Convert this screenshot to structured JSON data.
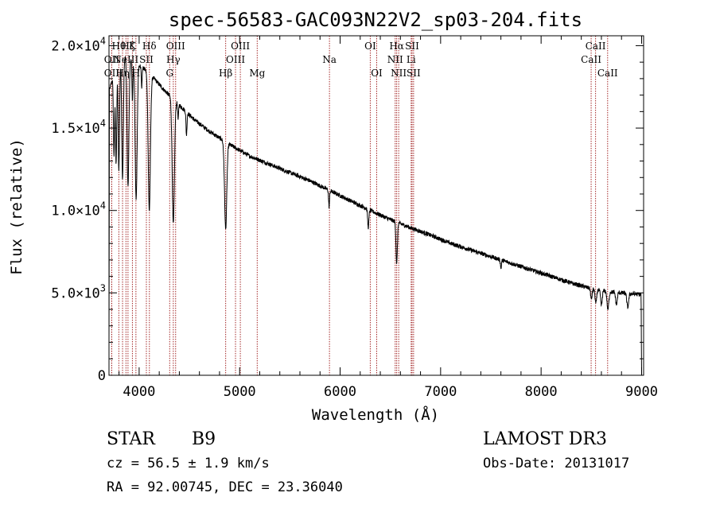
{
  "chart_data": {
    "type": "line",
    "title": "spec-56583-GAC093N22V2_sp03-204.fits",
    "xlabel": "Wavelength (Å)",
    "ylabel": "Flux (relative)",
    "xlim": [
      3700,
      9020
    ],
    "ylim": [
      0,
      20600
    ],
    "xticks": [
      {
        "value": 4000,
        "label": "4000"
      },
      {
        "value": 5000,
        "label": "5000"
      },
      {
        "value": 6000,
        "label": "6000"
      },
      {
        "value": 7000,
        "label": "7000"
      },
      {
        "value": 8000,
        "label": "8000"
      },
      {
        "value": 9000,
        "label": "9000"
      }
    ],
    "yticks": [
      {
        "value": 0,
        "mant": "0",
        "exp": ""
      },
      {
        "value": 5000,
        "mant": "5.0×10",
        "exp": "3"
      },
      {
        "value": 10000,
        "mant": "1.0×10",
        "exp": "4"
      },
      {
        "value": 15000,
        "mant": "1.5×10",
        "exp": "4"
      },
      {
        "value": 20000,
        "mant": "2.0×10",
        "exp": "4"
      }
    ],
    "continuum": [
      [
        3700,
        17200
      ],
      [
        3780,
        19000
      ],
      [
        3850,
        19400
      ],
      [
        3950,
        19000
      ],
      [
        4050,
        18600
      ],
      [
        4150,
        18000
      ],
      [
        4250,
        17300
      ],
      [
        4400,
        16400
      ],
      [
        4550,
        15500
      ],
      [
        4700,
        14800
      ],
      [
        4900,
        14000
      ],
      [
        5100,
        13300
      ],
      [
        5300,
        12800
      ],
      [
        5500,
        12300
      ],
      [
        5700,
        11800
      ],
      [
        5900,
        11200
      ],
      [
        6100,
        10600
      ],
      [
        6300,
        10000
      ],
      [
        6500,
        9450
      ],
      [
        6700,
        8950
      ],
      [
        6900,
        8500
      ],
      [
        7100,
        8000
      ],
      [
        7300,
        7600
      ],
      [
        7500,
        7200
      ],
      [
        7700,
        6800
      ],
      [
        7900,
        6400
      ],
      [
        8100,
        6000
      ],
      [
        8300,
        5600
      ],
      [
        8500,
        5250
      ],
      [
        8700,
        5050
      ],
      [
        8900,
        4950
      ],
      [
        8990,
        4900
      ]
    ],
    "absorption": [
      {
        "center": 3750,
        "depth": 5000,
        "width": 6
      },
      {
        "center": 3771,
        "depth": 6000,
        "width": 6
      },
      {
        "center": 3798,
        "depth": 6600,
        "width": 7
      },
      {
        "center": 3835,
        "depth": 7400,
        "width": 8
      },
      {
        "center": 3889,
        "depth": 7800,
        "width": 9
      },
      {
        "center": 3933,
        "depth": 2500,
        "width": 4
      },
      {
        "center": 3970,
        "depth": 8200,
        "width": 10
      },
      {
        "center": 4026,
        "depth": 1200,
        "width": 4
      },
      {
        "center": 4101,
        "depth": 8300,
        "width": 11
      },
      {
        "center": 4340,
        "depth": 7600,
        "width": 11
      },
      {
        "center": 4388,
        "depth": 1000,
        "width": 4
      },
      {
        "center": 4471,
        "depth": 1400,
        "width": 5
      },
      {
        "center": 4861,
        "depth": 5300,
        "width": 11
      },
      {
        "center": 5890,
        "depth": 1000,
        "width": 5
      },
      {
        "center": 6280,
        "depth": 1100,
        "width": 6
      },
      {
        "center": 6563,
        "depth": 2500,
        "width": 7
      },
      {
        "center": 7600,
        "depth": 500,
        "width": 5
      },
      {
        "center": 8500,
        "depth": 650,
        "width": 7
      },
      {
        "center": 8545,
        "depth": 850,
        "width": 8
      },
      {
        "center": 8600,
        "depth": 900,
        "width": 8
      },
      {
        "center": 8665,
        "depth": 1100,
        "width": 9
      },
      {
        "center": 8750,
        "depth": 750,
        "width": 8
      },
      {
        "center": 8862,
        "depth": 850,
        "width": 9
      }
    ],
    "edges": {
      "blue_drop_start": 3703,
      "red_drop_start": 8995
    },
    "line_markers": [
      {
        "wl": 3727,
        "label": "OII",
        "row": 1
      },
      {
        "wl": 3727,
        "label": "OII",
        "row": 2
      },
      {
        "wl": 3798,
        "label": "Hθ",
        "row": 0
      },
      {
        "wl": 3835,
        "label": "Hη",
        "row": 2
      },
      {
        "wl": 3869,
        "label": "NeIII",
        "row": 1
      },
      {
        "wl": 3889,
        "label": "Hζ",
        "row": 0
      },
      {
        "wl": 3933,
        "label": "K",
        "row": 0
      },
      {
        "wl": 3968,
        "label": "H",
        "row": 2
      },
      {
        "wl": 4072,
        "label": "SII",
        "row": 1
      },
      {
        "wl": 4102,
        "label": "Hδ",
        "row": 0
      },
      {
        "wl": 4304,
        "label": "G",
        "row": 2
      },
      {
        "wl": 4340,
        "label": "Hγ",
        "row": 1
      },
      {
        "wl": 4363,
        "label": "OIII",
        "row": 0
      },
      {
        "wl": 4861,
        "label": "Hβ",
        "row": 2
      },
      {
        "wl": 4959,
        "label": "OIII",
        "row": 1
      },
      {
        "wl": 5007,
        "label": "OIII",
        "row": 0
      },
      {
        "wl": 5175,
        "label": "Mg",
        "row": 2
      },
      {
        "wl": 5894,
        "label": "Na",
        "row": 1
      },
      {
        "wl": 6300,
        "label": "OI",
        "row": 0
      },
      {
        "wl": 6364,
        "label": "OI",
        "row": 2
      },
      {
        "wl": 6548,
        "label": "NII",
        "row": 1
      },
      {
        "wl": 6563,
        "label": "Hα",
        "row": 0
      },
      {
        "wl": 6583,
        "label": "NII",
        "row": 2
      },
      {
        "wl": 6707,
        "label": "Li",
        "row": 1
      },
      {
        "wl": 6716,
        "label": "SII",
        "row": 0
      },
      {
        "wl": 6731,
        "label": "SII",
        "row": 2
      },
      {
        "wl": 8498,
        "label": "CaII",
        "row": 1
      },
      {
        "wl": 8542,
        "label": "CaII",
        "row": 0
      },
      {
        "wl": 8662,
        "label": "CaII",
        "row": 2
      }
    ],
    "marker_color": "#a52a2a"
  },
  "info": {
    "object_class": "STAR",
    "subclass": "B9",
    "survey": "LAMOST DR3",
    "redshift": "cz = 56.5 ± 1.9 km/s",
    "obs_date": "Obs-Date: 20131017",
    "coords": "RA =  92.00745, DEC =  23.36040"
  }
}
